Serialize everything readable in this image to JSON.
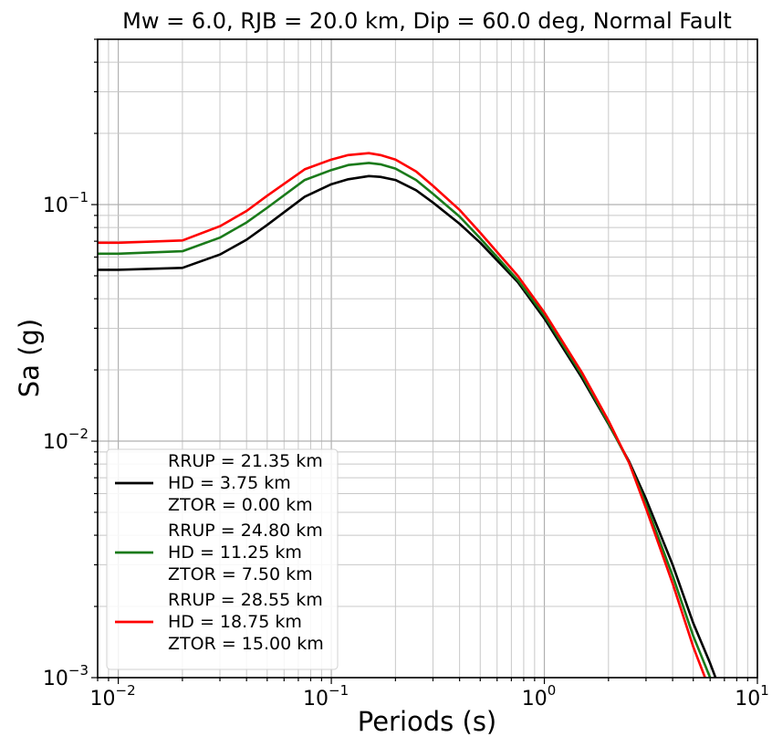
{
  "chart_data": {
    "type": "line",
    "title": "Mw = 6.0, RJB = 20.0 km, Dip = 60.0 deg, Normal Fault",
    "xlabel": "Periods (s)",
    "ylabel": "Sa (g)",
    "xscale": "log",
    "yscale": "log",
    "xlim": [
      0.008,
      10
    ],
    "ylim": [
      0.001,
      0.5
    ],
    "x_ticks": [
      {
        "base": "10",
        "exp": "−2",
        "value": 0.01
      },
      {
        "base": "10",
        "exp": "−1",
        "value": 0.1
      },
      {
        "base": "10",
        "exp": "0",
        "value": 1
      },
      {
        "base": "10",
        "exp": "1",
        "value": 10
      }
    ],
    "y_ticks": [
      {
        "base": "10",
        "exp": "−3",
        "value": 0.001
      },
      {
        "base": "10",
        "exp": "−2",
        "value": 0.01
      },
      {
        "base": "10",
        "exp": "−1",
        "value": 0.1
      }
    ],
    "grid": "major and minor",
    "legend_position": "lower-left",
    "x": [
      0.008,
      0.01,
      0.02,
      0.03,
      0.04,
      0.05,
      0.075,
      0.1,
      0.12,
      0.15,
      0.17,
      0.2,
      0.25,
      0.3,
      0.4,
      0.5,
      0.75,
      1.0,
      1.5,
      2.0,
      2.5,
      3.0,
      4.0,
      5.0,
      6.0,
      6.5
    ],
    "series": [
      {
        "legend": [
          "RRUP = 21.35 km",
          "HD = 3.75 km",
          "ZTOR = 0.00 km"
        ],
        "color": "#000000",
        "values": [
          0.053,
          0.053,
          0.054,
          0.0615,
          0.071,
          0.082,
          0.108,
          0.122,
          0.128,
          0.132,
          0.131,
          0.127,
          0.115,
          0.102,
          0.083,
          0.069,
          0.047,
          0.033,
          0.0185,
          0.0118,
          0.0082,
          0.0057,
          0.003,
          0.0017,
          0.00115,
          0.00095
        ]
      },
      {
        "legend": [
          "RRUP = 24.80 km",
          "HD = 11.25 km",
          "ZTOR = 7.50 km"
        ],
        "color": "#1a7a1a",
        "values": [
          0.062,
          0.062,
          0.0635,
          0.0725,
          0.084,
          0.097,
          0.127,
          0.14,
          0.147,
          0.15,
          0.148,
          0.142,
          0.127,
          0.111,
          0.089,
          0.072,
          0.048,
          0.034,
          0.019,
          0.0119,
          0.0081,
          0.0054,
          0.0027,
          0.0015,
          0.001,
          0.00085
        ]
      },
      {
        "legend": [
          "RRUP = 28.55 km",
          "HD = 18.75 km",
          "ZTOR = 15.00 km"
        ],
        "color": "#ff0000",
        "values": [
          0.069,
          0.069,
          0.0705,
          0.081,
          0.094,
          0.109,
          0.141,
          0.155,
          0.162,
          0.165,
          0.162,
          0.155,
          0.138,
          0.12,
          0.095,
          0.076,
          0.05,
          0.035,
          0.0195,
          0.0122,
          0.0081,
          0.0052,
          0.0025,
          0.00135,
          0.00088,
          0.00075
        ]
      }
    ]
  }
}
